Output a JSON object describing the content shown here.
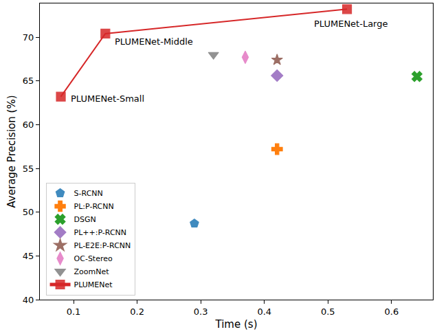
{
  "chart_data": {
    "type": "scatter",
    "x_label": "Time (s)",
    "y_label": "Average Precision (%)",
    "xlim": [
      0.047,
      0.665
    ],
    "xticks": [
      0.1,
      0.2,
      0.3,
      0.4,
      0.5,
      0.6
    ],
    "ylim": [
      40,
      73.85
    ],
    "yticks": [
      40,
      45,
      50,
      55,
      60,
      65,
      70
    ],
    "grid": false,
    "legend": "lower left",
    "series": [
      {
        "name": "S-RCNN",
        "color": "#1f77b4",
        "marker": "pentagon",
        "x": [
          0.29
        ],
        "values": [
          48.7
        ]
      },
      {
        "name": "PL:P-RCNN",
        "color": "#ff7f0e",
        "marker": "cross",
        "x": [
          0.42
        ],
        "values": [
          57.2
        ]
      },
      {
        "name": "DSGN",
        "color": "#2ca02c",
        "marker": "x",
        "x": [
          0.64
        ],
        "values": [
          65.5
        ]
      },
      {
        "name": "PL++:P-RCNN",
        "color": "#9467bd",
        "marker": "diamond",
        "x": [
          0.42
        ],
        "values": [
          65.6
        ]
      },
      {
        "name": "PL-E2E:P-RCNN",
        "color": "#8c564b",
        "marker": "star",
        "x": [
          0.42
        ],
        "values": [
          67.4
        ]
      },
      {
        "name": "OC-Stereo",
        "color": "#e377c2",
        "marker": "diamond-tall",
        "x": [
          0.37
        ],
        "values": [
          67.7
        ]
      },
      {
        "name": "ZoomNet",
        "color": "#7f7f7f",
        "marker": "triangle-down",
        "x": [
          0.32
        ],
        "values": [
          68.0
        ]
      },
      {
        "name": "PLUMENet",
        "color": "#d62728",
        "marker": "square",
        "type": "line",
        "line_style": "solid",
        "x": [
          0.08,
          0.15,
          0.53
        ],
        "values": [
          63.2,
          70.4,
          73.2
        ],
        "point_labels": [
          "PLUMENet-Small",
          "PLUMENet-Middle",
          "PLUMENet-Large"
        ]
      }
    ]
  }
}
